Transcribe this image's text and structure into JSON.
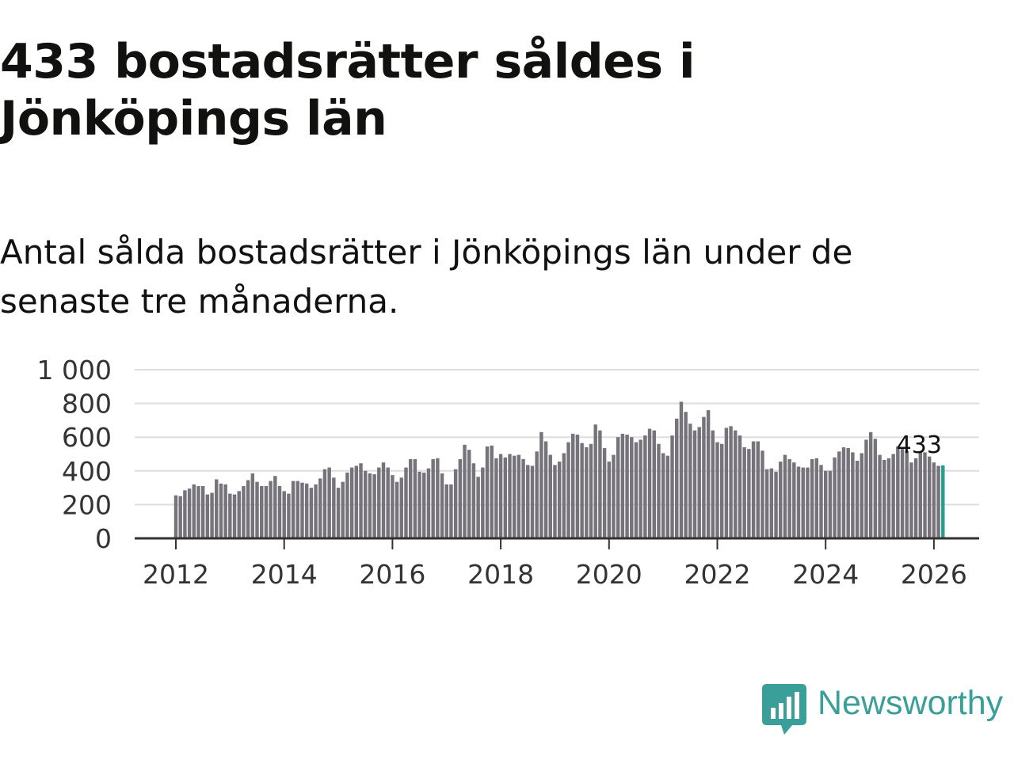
{
  "title": "433 bostadsrätter såldes i Jönköpings län",
  "subtitle": "Antal sålda bostadsrätter i Jönköpings län under de senaste tre månaderna.",
  "brand": {
    "name": "Newsworthy",
    "color": "#3a9f98",
    "icon": "newsworthy-logo-icon"
  },
  "colors": {
    "bar": "#76747a",
    "highlight": "#2a9d8f",
    "grid": "#dddddd",
    "axis": "#333333"
  },
  "chart_data": {
    "type": "bar",
    "title": "",
    "xlabel": "",
    "ylabel": "",
    "ylim": [
      0,
      1000
    ],
    "yticks": [
      0,
      200,
      400,
      600,
      800,
      1000
    ],
    "ytick_labels": [
      "0",
      "200",
      "400",
      "600",
      "800",
      "1 000"
    ],
    "xticks": [
      "2012",
      "2014",
      "2016",
      "2018",
      "2020",
      "2022",
      "2024",
      "2026"
    ],
    "grid": true,
    "start": "2012-01",
    "last_label": "433",
    "values": [
      255,
      250,
      285,
      295,
      320,
      310,
      310,
      260,
      270,
      350,
      325,
      320,
      265,
      260,
      280,
      310,
      345,
      385,
      335,
      310,
      310,
      340,
      370,
      310,
      280,
      265,
      340,
      340,
      330,
      325,
      300,
      320,
      355,
      410,
      420,
      360,
      300,
      335,
      390,
      420,
      430,
      445,
      400,
      385,
      380,
      420,
      450,
      420,
      375,
      335,
      360,
      420,
      470,
      470,
      395,
      390,
      415,
      470,
      475,
      385,
      320,
      320,
      410,
      470,
      555,
      525,
      445,
      365,
      420,
      545,
      550,
      475,
      500,
      480,
      500,
      490,
      495,
      470,
      435,
      430,
      515,
      630,
      575,
      495,
      435,
      455,
      505,
      570,
      620,
      615,
      565,
      540,
      560,
      675,
      640,
      535,
      455,
      495,
      600,
      620,
      615,
      600,
      570,
      585,
      610,
      650,
      640,
      560,
      505,
      490,
      610,
      710,
      810,
      750,
      680,
      640,
      660,
      720,
      760,
      640,
      570,
      560,
      655,
      665,
      640,
      610,
      540,
      530,
      575,
      575,
      520,
      410,
      415,
      395,
      455,
      495,
      470,
      450,
      425,
      420,
      420,
      470,
      475,
      435,
      400,
      400,
      480,
      515,
      540,
      535,
      510,
      460,
      505,
      585,
      630,
      590,
      495,
      465,
      475,
      500,
      545,
      530,
      520,
      450,
      475,
      510,
      510,
      485,
      450,
      430,
      433
    ]
  }
}
